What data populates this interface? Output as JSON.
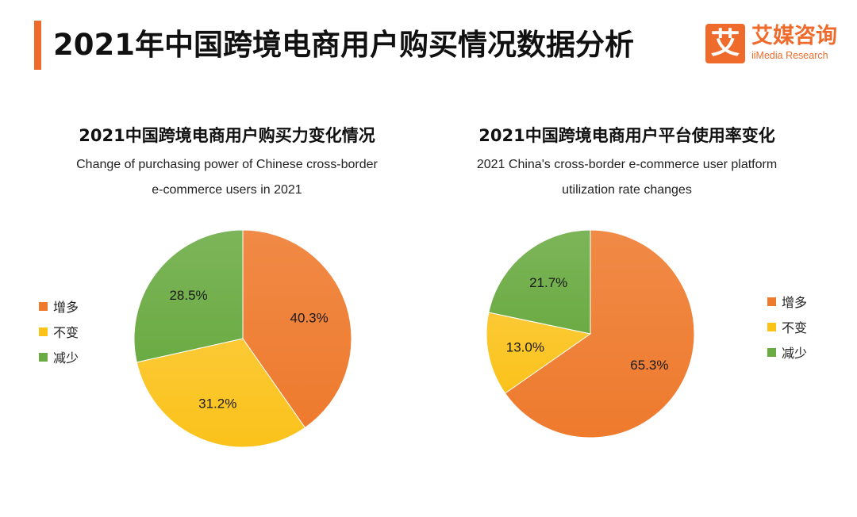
{
  "page": {
    "title": "2021年中国跨境电商用户购买情况数据分析"
  },
  "logo": {
    "mark": "艾",
    "name_cn": "艾媒咨询",
    "name_en": "iiMedia Research"
  },
  "colors": {
    "accent": "#ef6b2c",
    "increase": "#ee7a2d",
    "same": "#fbc21a",
    "decrease": "#6bab43"
  },
  "chart_data": [
    {
      "type": "pie",
      "title": "2021中国跨境电商用户购买力变化情况",
      "subtitle_lines": [
        "Change of purchasing power of Chinese cross-border",
        "e-commerce users in 2021"
      ],
      "categories": [
        "增多",
        "不变",
        "减少"
      ],
      "values": [
        40.3,
        31.2,
        28.5
      ],
      "labels": [
        "40.3%",
        "31.2%",
        "28.5%"
      ],
      "colors": [
        "#ee7a2d",
        "#fbc21a",
        "#6bab43"
      ],
      "start_angle": "12 o'clock",
      "direction": "clockwise",
      "legend_position": "left"
    },
    {
      "type": "pie",
      "title": "2021中国跨境电商用户平台使用率变化",
      "subtitle_lines": [
        "2021 China's cross-border e-commerce user platform",
        "utilization rate changes"
      ],
      "categories": [
        "增多",
        "不变",
        "减少"
      ],
      "values": [
        65.3,
        13.0,
        21.7
      ],
      "labels": [
        "65.3%",
        "13.0%",
        "21.7%"
      ],
      "colors": [
        "#ee7a2d",
        "#fbc21a",
        "#6bab43"
      ],
      "start_angle": "12 o'clock",
      "direction": "clockwise",
      "legend_position": "right"
    }
  ]
}
